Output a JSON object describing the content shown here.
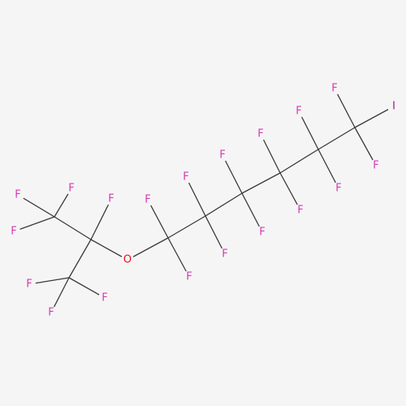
{
  "colors": {
    "background": "#f5f5f5",
    "bond": "#3a3a3a",
    "F": "#d63ab4",
    "O": "#e8101a",
    "I": "#a6148c"
  },
  "labels": {
    "fluorine": "F",
    "oxygen": "O",
    "iodine": "I"
  }
}
